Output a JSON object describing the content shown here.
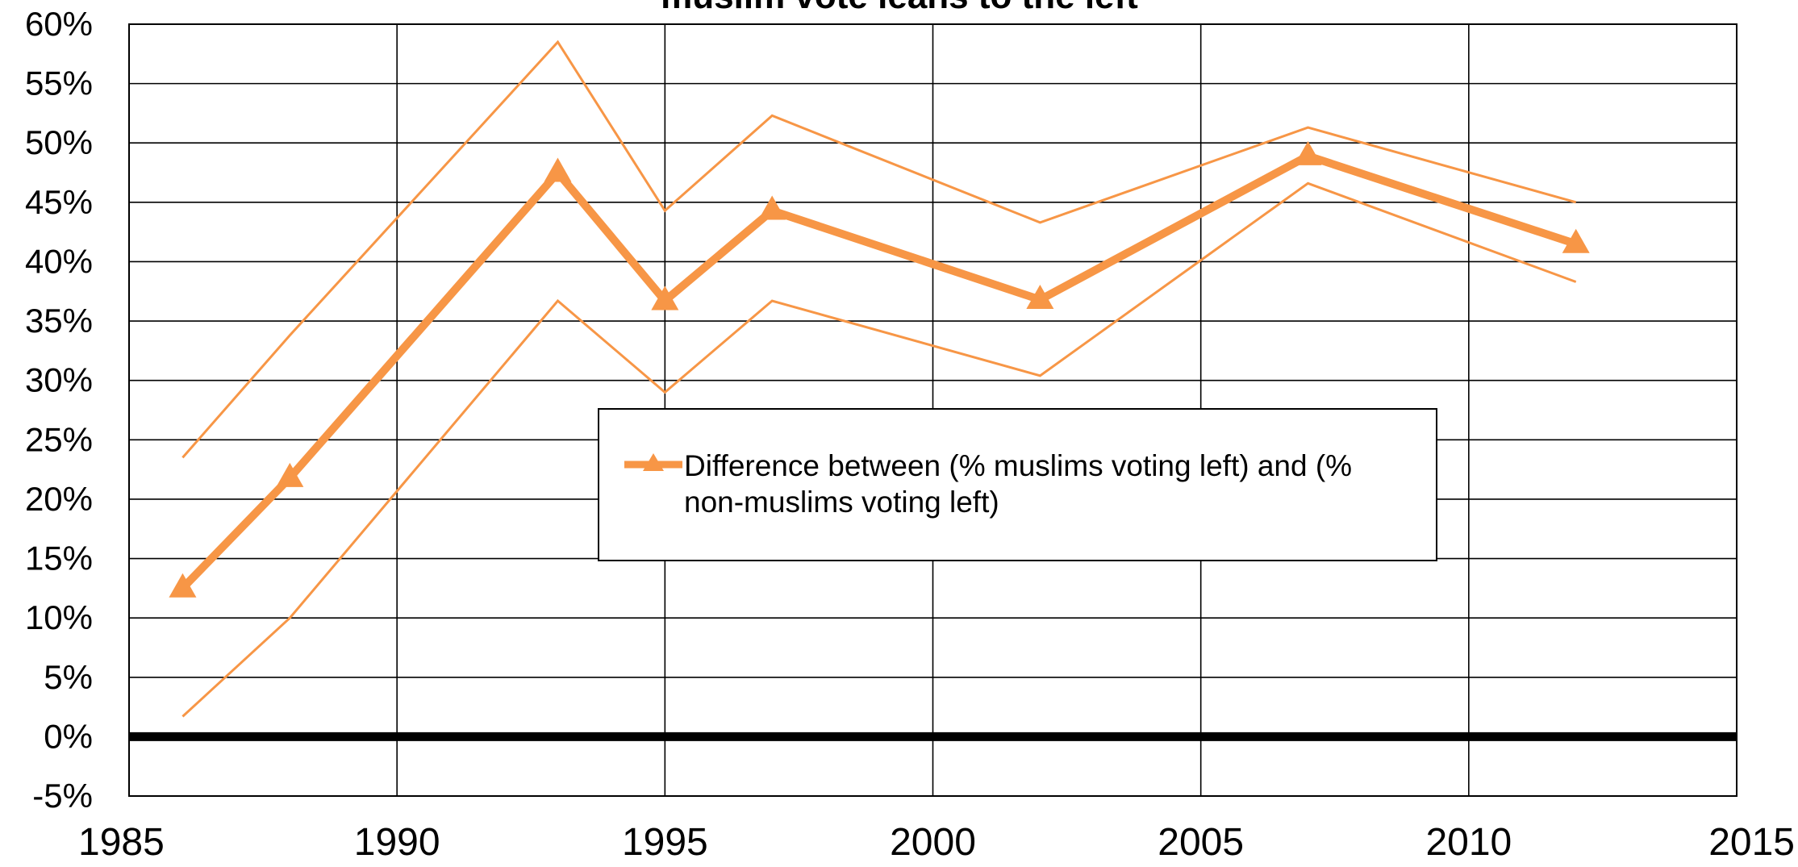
{
  "chart_data": {
    "type": "line",
    "title": "muslim vote leans to the left",
    "xlabel": "",
    "ylabel": "",
    "xlim": [
      1985,
      2015
    ],
    "ylim": [
      -5,
      60
    ],
    "x_ticks": [
      1985,
      1990,
      1995,
      2000,
      2005,
      2010,
      2015
    ],
    "y_ticks": [
      -5,
      0,
      5,
      10,
      15,
      20,
      25,
      30,
      35,
      40,
      45,
      50,
      55,
      60
    ],
    "y_tick_labels": [
      "-5%",
      "0%",
      "5%",
      "10%",
      "15%",
      "20%",
      "25%",
      "30%",
      "35%",
      "40%",
      "45%",
      "50%",
      "55%",
      "60%"
    ],
    "x_tick_labels": [
      "1985",
      "1990",
      "1995",
      "2000",
      "2005",
      "2010",
      "2015"
    ],
    "grid": true,
    "legend_position": "center",
    "reference_line_y": 0,
    "series": [
      {
        "name": "Difference between (% muslims voting left) and (% non-muslims voting left)",
        "role": "main",
        "marker": "triangle",
        "color": "#F79646",
        "x": [
          1986,
          1988,
          1993,
          1995,
          1997,
          2002,
          2007,
          2012
        ],
        "values": [
          12.5,
          21.8,
          47.5,
          36.7,
          44.3,
          36.8,
          48.9,
          41.5
        ]
      },
      {
        "role": "upper-bound",
        "color": "#F79646",
        "x": [
          1986,
          1988,
          1993,
          1995,
          1997,
          2002,
          2007,
          2012
        ],
        "values": [
          23.5,
          33.8,
          58.5,
          44.3,
          52.3,
          43.3,
          51.3,
          45.0
        ]
      },
      {
        "role": "lower-bound",
        "color": "#F79646",
        "x": [
          1986,
          1988,
          1993,
          1995,
          1997,
          2002,
          2007,
          2012
        ],
        "values": [
          1.7,
          10.0,
          36.7,
          29.0,
          36.7,
          30.4,
          46.6,
          38.3
        ]
      }
    ]
  },
  "legend": {
    "line1": "Difference between (% muslims voting left) and (%",
    "line2": "non-muslims voting left)"
  }
}
